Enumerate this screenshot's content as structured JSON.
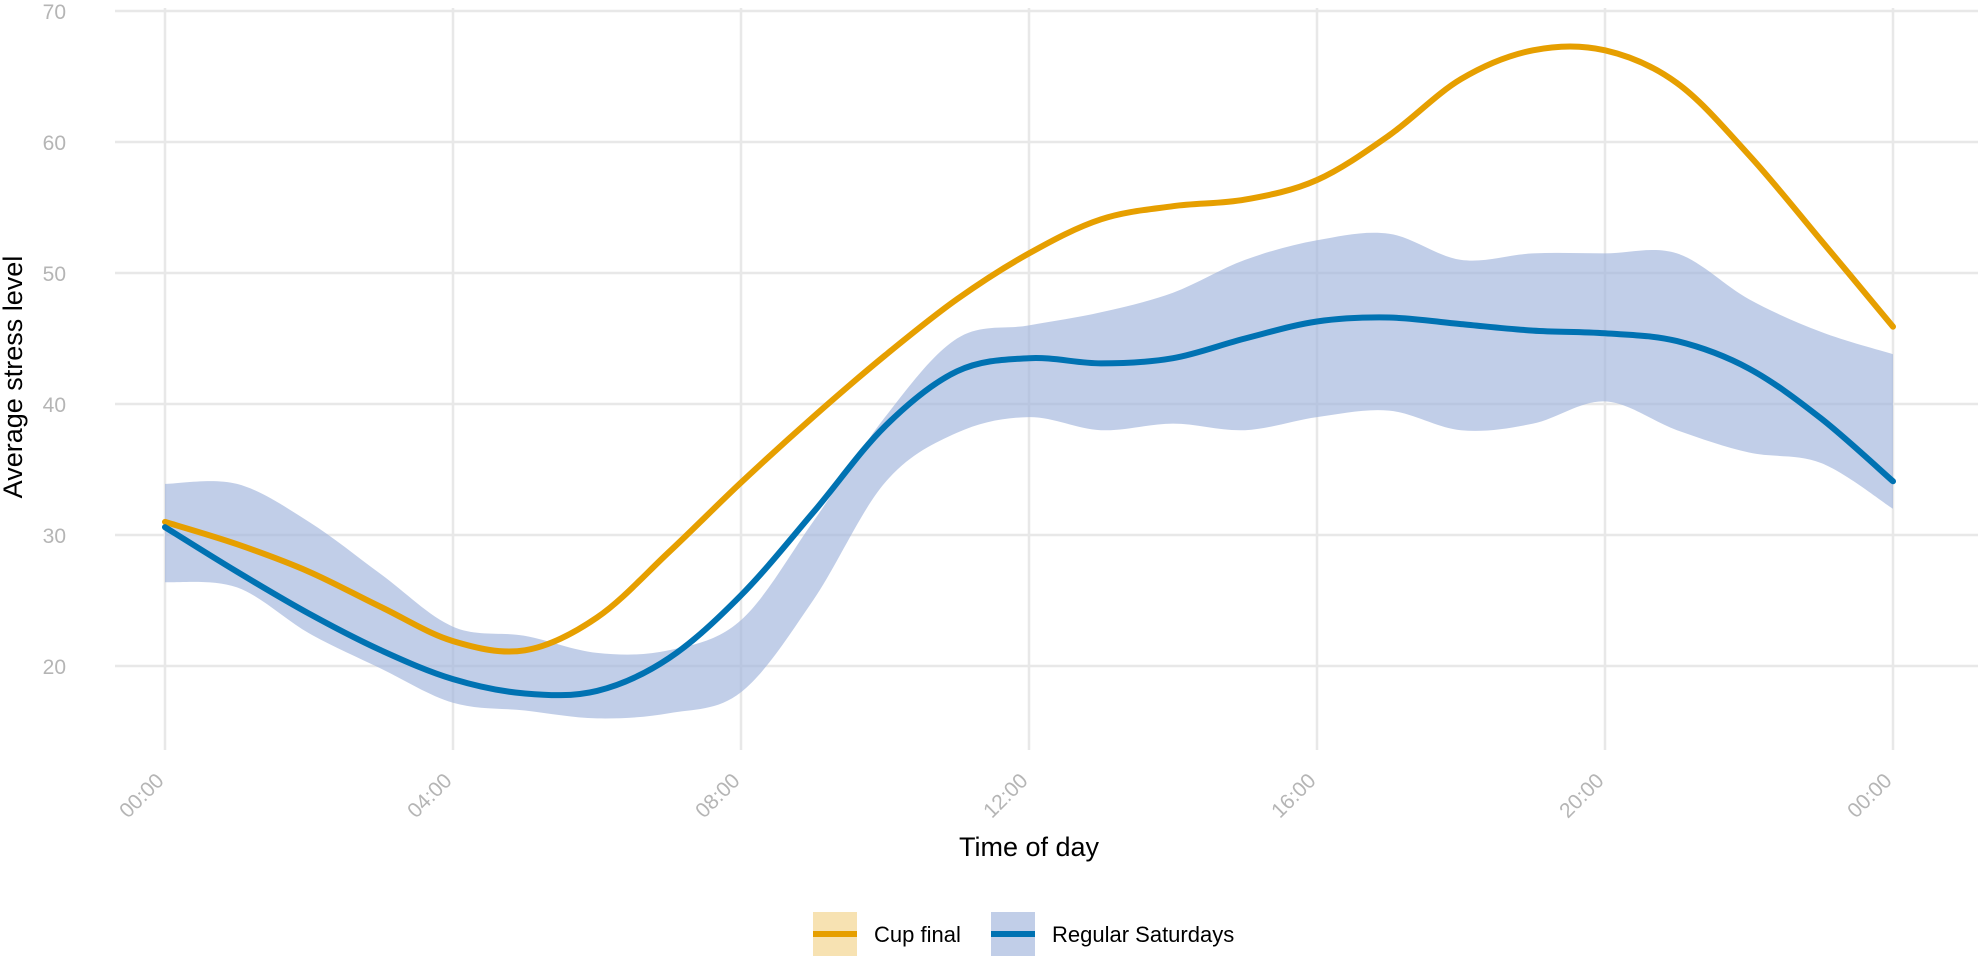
{
  "chart_data": {
    "type": "line",
    "title": "",
    "xlabel": "Time of day",
    "ylabel": "Average stress level",
    "x_tick_labels": [
      "00:00",
      "04:00",
      "08:00",
      "12:00",
      "16:00",
      "20:00",
      "00:00"
    ],
    "y_tick_labels": [
      "20",
      "30",
      "40",
      "50",
      "60",
      "70"
    ],
    "x_unit": "hours",
    "xlim": [
      0,
      24
    ],
    "ylim": [
      13.5,
      70
    ],
    "grid": true,
    "legend_position": "bottom",
    "x_hours": [
      0,
      1,
      2,
      3,
      4,
      5,
      6,
      7,
      8,
      9,
      10,
      11,
      12,
      13,
      14,
      15,
      16,
      17,
      18,
      19,
      20,
      21,
      22,
      23,
      24
    ],
    "series": [
      {
        "name": "Cup final",
        "color": "#E69F00",
        "values": [
          31.0,
          29.3,
          27.2,
          24.5,
          21.9,
          21.2,
          23.7,
          28.7,
          34.0,
          39.0,
          43.7,
          48.0,
          51.5,
          54.1,
          55.1,
          55.6,
          57.1,
          60.5,
          64.8,
          67.0,
          67.0,
          64.5,
          59.0,
          52.5,
          45.9
        ]
      },
      {
        "name": "Regular Saturdays",
        "color": "#0072B2",
        "band_color": "#9fb4dc",
        "values": [
          30.6,
          27.2,
          24.0,
          21.2,
          19.0,
          17.9,
          18.1,
          20.6,
          25.4,
          31.7,
          38.3,
          42.5,
          43.5,
          43.1,
          43.5,
          45.0,
          46.3,
          46.6,
          46.1,
          45.6,
          45.4,
          44.8,
          42.7,
          38.9,
          34.1
        ],
        "lower": [
          26.4,
          26.0,
          22.5,
          19.8,
          17.2,
          16.6,
          16.0,
          16.4,
          18.0,
          25.0,
          34.0,
          37.8,
          39.0,
          38.0,
          38.5,
          38.0,
          39.0,
          39.5,
          38.0,
          38.5,
          40.2,
          38.0,
          36.3,
          35.5,
          32.0
        ],
        "upper": [
          33.9,
          33.9,
          31.0,
          27.0,
          23.0,
          22.3,
          21.0,
          21.2,
          23.5,
          31.0,
          39.0,
          45.0,
          46.0,
          47.0,
          48.5,
          51.0,
          52.5,
          53.0,
          51.0,
          51.5,
          51.5,
          51.5,
          48.0,
          45.5,
          43.8
        ]
      }
    ]
  }
}
